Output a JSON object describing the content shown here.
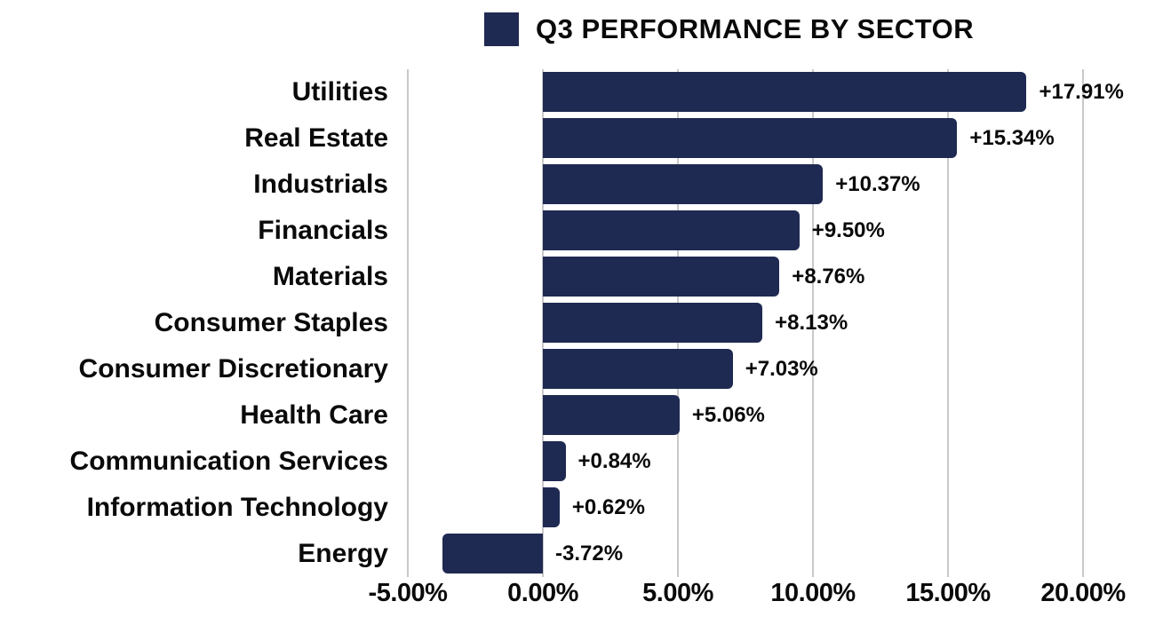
{
  "title": "Q3 PERFORMANCE BY SECTOR",
  "colors": {
    "bar": "#1F2A52",
    "gridline": "#C9C9C9",
    "text": "#0A0A0A",
    "background": "#FFFFFF"
  },
  "legend": {
    "swatch_icon": "navy-square-swatch",
    "label": "Q3 PERFORMANCE BY SECTOR",
    "position": "top"
  },
  "chart_data": {
    "type": "bar",
    "orientation": "horizontal",
    "title": "Q3 PERFORMANCE BY SECTOR",
    "categories": [
      "Utilities",
      "Real Estate",
      "Industrials",
      "Financials",
      "Materials",
      "Consumer Staples",
      "Consumer Discretionary",
      "Health Care",
      "Communication Services",
      "Information Technology",
      "Energy"
    ],
    "values": [
      17.91,
      15.34,
      10.37,
      9.5,
      8.76,
      8.13,
      7.03,
      5.06,
      0.84,
      0.62,
      -3.72
    ],
    "value_labels": [
      "+17.91%",
      "+15.34%",
      "+10.37%",
      "+9.50%",
      "+8.76%",
      "+8.13%",
      "+7.03%",
      "+5.06%",
      "+0.84%",
      "+0.62%",
      "-3.72%"
    ],
    "x_tick_labels": [
      "-5.00%",
      "0.00%",
      "5.00%",
      "10.00%",
      "15.00%",
      "20.00%"
    ],
    "x_tick_values": [
      -5,
      0,
      5,
      10,
      15,
      20
    ],
    "xlim": [
      -5,
      20
    ],
    "xlabel": "",
    "ylabel": "",
    "grid": "vertical-only",
    "legend_position": "top",
    "bar_color": "#1F2A52"
  }
}
